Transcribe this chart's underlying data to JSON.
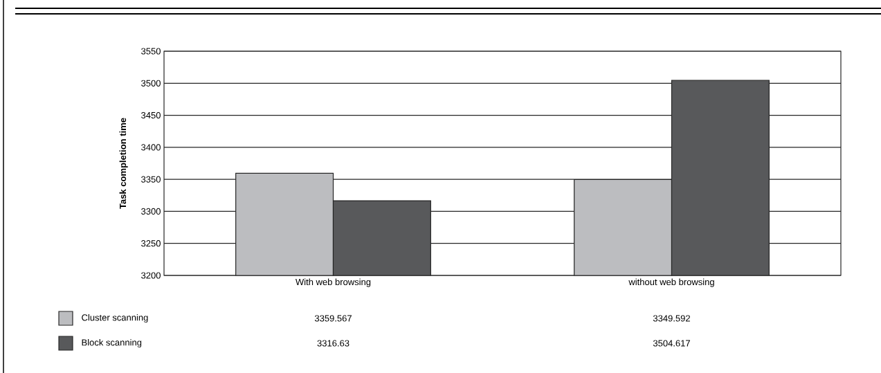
{
  "chart_data": {
    "type": "bar",
    "ylabel": "Task completion time",
    "categories": [
      "With web browsing",
      "without web browsing"
    ],
    "series": [
      {
        "name": "Cluster scanning",
        "color": "#bcbdc0",
        "values": [
          3359.567,
          3349.592
        ]
      },
      {
        "name": "Block scanning",
        "color": "#58595b",
        "values": [
          3316.63,
          3504.617
        ]
      }
    ],
    "ylim": [
      3200,
      3550
    ],
    "yticks": [
      3200,
      3250,
      3300,
      3350,
      3400,
      3450,
      3500,
      3550
    ],
    "grid": "y",
    "legend": "bottom left",
    "data_labels": true
  }
}
